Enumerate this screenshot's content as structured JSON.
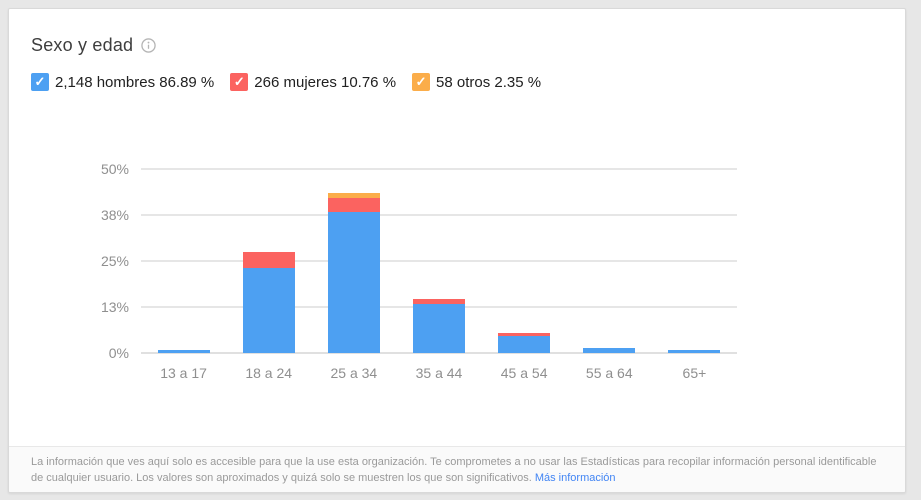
{
  "title": "Sexo y edad",
  "legend": [
    {
      "label": "2,148 hombres 86.89 %",
      "color": "#4da0f2",
      "checked": true
    },
    {
      "label": "266 mujeres 10.76 %",
      "color": "#fb6360",
      "checked": true
    },
    {
      "label": "58 otros 2.35 %",
      "color": "#fbad4a",
      "checked": true
    }
  ],
  "footer": {
    "text": "La información que ves aquí solo es accesible para que la use esta organización. Te comprometes a no usar las Estadísticas para recopilar información personal identificable de cualquier usuario. Los valores son aproximados y quizá solo se muestren los que son significativos.",
    "link": "Más información"
  },
  "chart_data": {
    "type": "bar",
    "stacked": true,
    "title": "Sexo y edad",
    "categories": [
      "13 a 17",
      "18 a 24",
      "25 a 34",
      "35 a 44",
      "45 a 54",
      "55 a 64",
      "65+"
    ],
    "series": [
      {
        "name": "hombres",
        "color": "#4da0f2",
        "values": [
          0.8,
          23.1,
          38.2,
          13.3,
          4.7,
          1.4,
          0.7
        ]
      },
      {
        "name": "mujeres",
        "color": "#fb6360",
        "values": [
          0,
          4.4,
          4.0,
          1.3,
          0.8,
          0,
          0
        ]
      },
      {
        "name": "otros",
        "color": "#fbad4a",
        "values": [
          0,
          0,
          1.4,
          0,
          0,
          0,
          0
        ]
      }
    ],
    "totals": {
      "hombres": "2,148 (86.89 %)",
      "mujeres": "266 (10.76 %)",
      "otros": "58 (2.35 %)"
    },
    "ylabel": "",
    "xlabel": "",
    "ymax": 50,
    "yticks": [
      {
        "label": "0%",
        "value": 0
      },
      {
        "label": "13%",
        "value": 12.5
      },
      {
        "label": "25%",
        "value": 25
      },
      {
        "label": "38%",
        "value": 37.5
      },
      {
        "label": "50%",
        "value": 50
      }
    ],
    "grid": true,
    "legend_position": "top"
  }
}
